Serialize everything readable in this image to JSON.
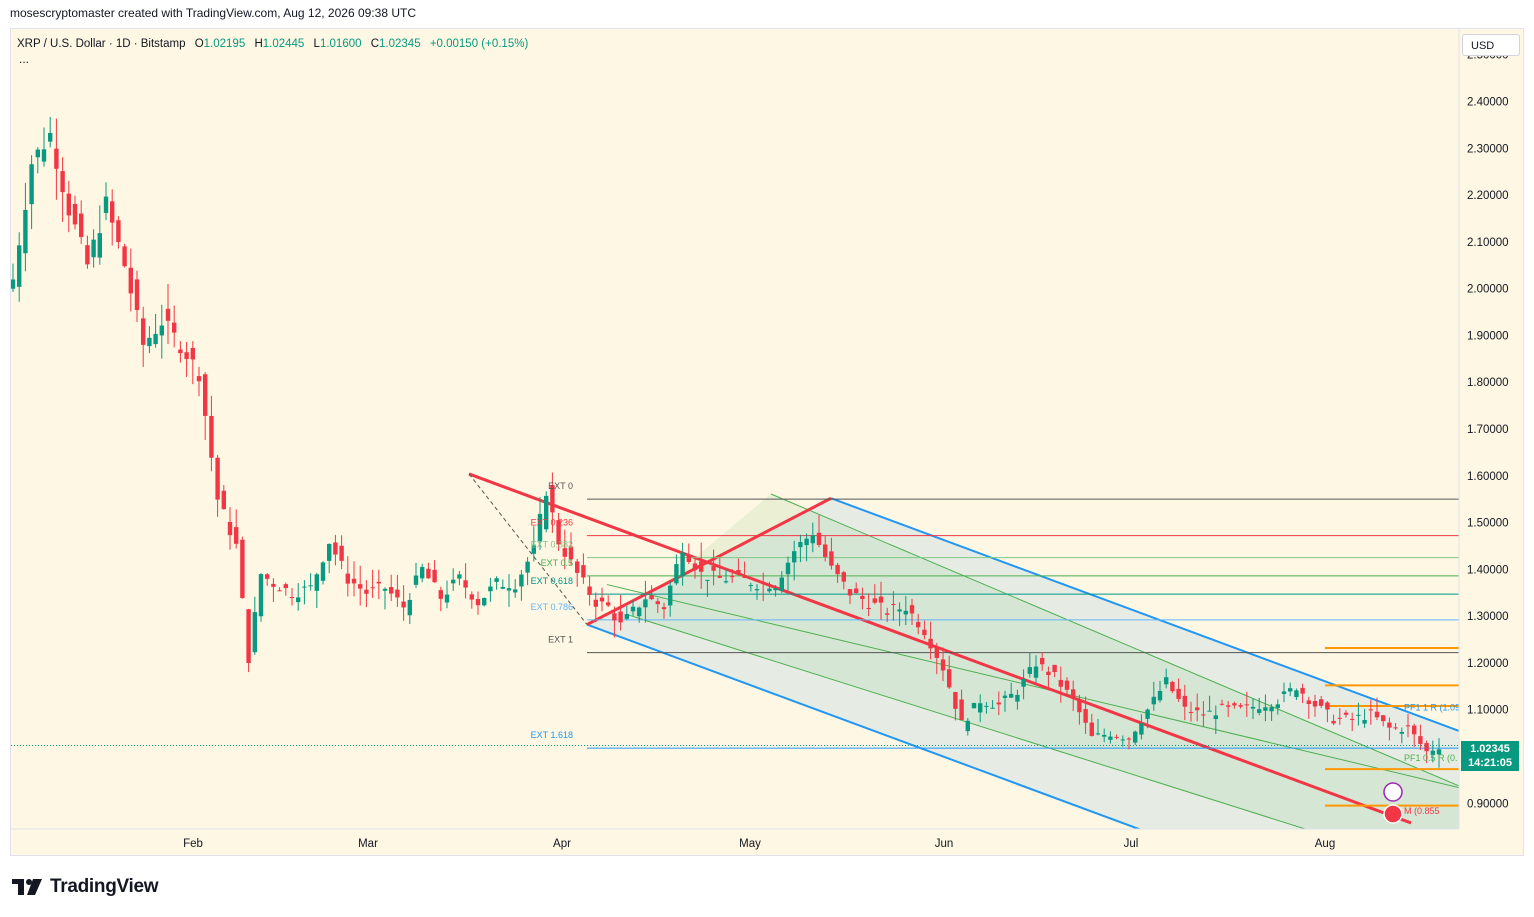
{
  "header": {
    "attribution": "mosescryptomaster created with TradingView.com, Aug 12, 2026 09:38 UTC"
  },
  "legend": {
    "symbol": "XRP / U.S. Dollar · 1D · Bitstamp",
    "o_label": "O",
    "o": "1.02195",
    "h_label": "H",
    "h": "1.02445",
    "l_label": "L",
    "l": "1.01600",
    "c_label": "C",
    "c": "1.02345",
    "change": "+0.00150 (+0.15%)",
    "more": "..."
  },
  "currency_button": "USD",
  "price_badge": {
    "price": "1.02345",
    "countdown": "14:21:05"
  },
  "footer": {
    "brand": "TradingView",
    "logo": "tradingview-logo-icon"
  },
  "colors": {
    "background": "#fdf7e3",
    "up": "#089981",
    "down": "#f23645",
    "channel_blue": "#2196f3",
    "midline_red": "#f23645",
    "fib_green": "#4caf50",
    "pf_orange": "#ff9800"
  },
  "chart_data": {
    "type": "candlestick",
    "ylim": [
      0.845,
      2.555
    ],
    "y_ticks": [
      "2.50000",
      "2.40000",
      "2.30000",
      "2.20000",
      "2.10000",
      "2.00000",
      "1.90000",
      "1.80000",
      "1.70000",
      "1.60000",
      "1.50000",
      "1.40000",
      "1.30000",
      "1.20000",
      "1.10000",
      "1.00000",
      "0.90000"
    ],
    "x_ticks": [
      "Feb",
      "Mar",
      "Apr",
      "May",
      "Jun",
      "Jul",
      "Aug"
    ],
    "last_price": 1.02345,
    "close_path": [
      [
        0,
        2.02
      ],
      [
        3,
        2.27
      ],
      [
        6,
        2.33
      ],
      [
        9,
        2.17
      ],
      [
        12,
        2.05
      ],
      [
        15,
        2.18
      ],
      [
        18,
        2.05
      ],
      [
        21,
        1.88
      ],
      [
        24,
        1.93
      ],
      [
        27,
        1.88
      ],
      [
        30,
        1.82
      ],
      [
        33,
        1.55
      ],
      [
        36,
        1.45
      ],
      [
        38,
        1.21
      ],
      [
        40,
        1.39
      ],
      [
        42,
        1.37
      ],
      [
        45,
        1.35
      ],
      [
        48,
        1.36
      ],
      [
        51,
        1.46
      ],
      [
        54,
        1.38
      ],
      [
        57,
        1.35
      ],
      [
        60,
        1.36
      ],
      [
        63,
        1.32
      ],
      [
        66,
        1.4
      ],
      [
        69,
        1.34
      ],
      [
        72,
        1.38
      ],
      [
        75,
        1.33
      ],
      [
        78,
        1.37
      ],
      [
        81,
        1.37
      ],
      [
        84,
        1.44
      ],
      [
        86,
        1.57
      ],
      [
        88,
        1.46
      ],
      [
        91,
        1.39
      ],
      [
        94,
        1.33
      ],
      [
        96,
        1.32
      ],
      [
        98,
        1.28
      ],
      [
        100,
        1.31
      ],
      [
        102,
        1.34
      ],
      [
        105,
        1.32
      ],
      [
        108,
        1.45
      ],
      [
        111,
        1.39
      ],
      [
        114,
        1.38
      ],
      [
        117,
        1.38
      ],
      [
        120,
        1.37
      ],
      [
        123,
        1.37
      ],
      [
        126,
        1.44
      ],
      [
        129,
        1.48
      ],
      [
        132,
        1.4
      ],
      [
        135,
        1.35
      ],
      [
        138,
        1.33
      ],
      [
        141,
        1.31
      ],
      [
        144,
        1.32
      ],
      [
        147,
        1.27
      ],
      [
        150,
        1.19
      ],
      [
        153,
        1.07
      ],
      [
        156,
        1.12
      ],
      [
        159,
        1.11
      ],
      [
        162,
        1.14
      ],
      [
        165,
        1.2
      ],
      [
        168,
        1.17
      ],
      [
        171,
        1.12
      ],
      [
        174,
        1.04
      ],
      [
        177,
        1.05
      ],
      [
        180,
        1.04
      ],
      [
        183,
        1.1
      ],
      [
        186,
        1.16
      ],
      [
        189,
        1.1
      ],
      [
        192,
        1.09
      ],
      [
        195,
        1.1
      ],
      [
        198,
        1.1
      ],
      [
        201,
        1.11
      ],
      [
        204,
        1.12
      ],
      [
        207,
        1.15
      ],
      [
        210,
        1.11
      ],
      [
        213,
        1.08
      ],
      [
        216,
        1.08
      ],
      [
        219,
        1.09
      ],
      [
        222,
        1.06
      ],
      [
        225,
        1.06
      ],
      [
        228,
        1.01
      ],
      [
        230,
        1.02345
      ]
    ],
    "drawings": {
      "fib_levels": [
        {
          "label": "EXT 0",
          "price": 1.55
        },
        {
          "label": "EXT 0.236",
          "price": 1.472
        },
        {
          "label": "EXT 0.382",
          "price": 1.425
        },
        {
          "label": "EXT 0.5",
          "price": 1.386
        },
        {
          "label": "EXT 0.618",
          "price": 1.347
        },
        {
          "label": "EXT 0.786",
          "price": 1.292
        },
        {
          "label": "EXT 1",
          "price": 1.222
        },
        {
          "label": "EXT 1.618",
          "price": 1.018
        }
      ],
      "pitchfork_labels": [
        {
          "label": "PF1 1 R (1.09",
          "price": 1.098
        },
        {
          "label": "PF1 0.5 R (0.",
          "price": 0.99
        },
        {
          "label": "M (0.855",
          "price": 0.877
        }
      ],
      "orange_levels": [
        1.232,
        1.152,
        1.108,
        0.973,
        0.895
      ]
    }
  }
}
